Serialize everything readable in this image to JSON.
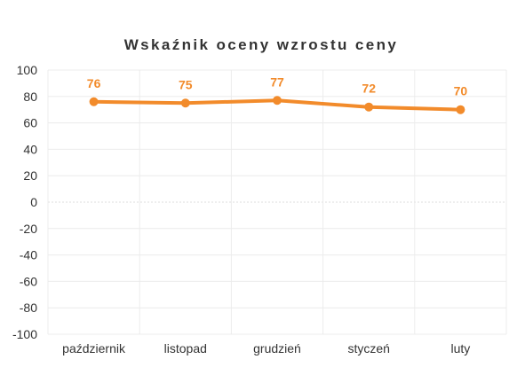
{
  "chart_data": {
    "type": "line",
    "title": "Wskaźnik oceny wzrostu ceny",
    "categories": [
      "październik",
      "listopad",
      "grudzień",
      "styczeń",
      "luty"
    ],
    "series": [
      {
        "values": [
          76,
          75,
          77,
          72,
          70
        ],
        "color": "#f28b2b"
      }
    ],
    "ylim": [
      -100,
      100
    ],
    "yticks": [
      100,
      80,
      60,
      40,
      20,
      0,
      -20,
      -40,
      -60,
      -80,
      -100
    ],
    "grid": true,
    "zero_line": "dashed",
    "data_labels": true
  }
}
